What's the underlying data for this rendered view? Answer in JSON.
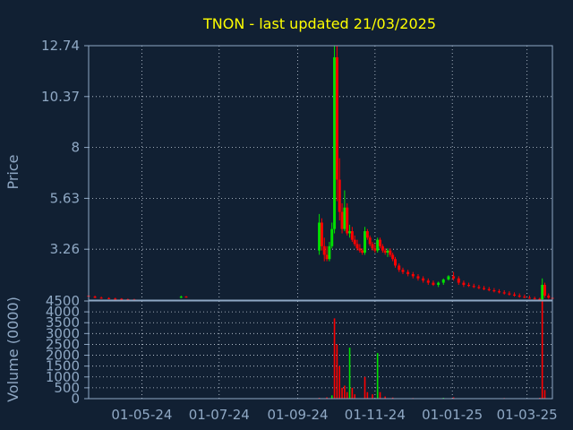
{
  "title": "TNON - last updated 21/03/2025",
  "colors": {
    "background": "#112033",
    "axis": "#8fa8c4",
    "grid": "#c8d2de",
    "text": "#8fa8c4",
    "title": "#ffff00",
    "up": "#00e000",
    "down": "#ff0000"
  },
  "chart_data": [
    {
      "type": "candlestick",
      "title": "TNON - last updated 21/03/2025",
      "ylabel": "Price",
      "ylim": [
        0.89,
        12.74
      ],
      "y_ticks": [
        "12.74",
        "10.37",
        "8",
        "5.63",
        "3.26"
      ],
      "x_range": [
        "2024-03-20",
        "2025-03-21"
      ],
      "x_ticks": [
        "01-05-24",
        "01-07-24",
        "01-09-24",
        "01-11-24",
        "01-01-25",
        "01-03-25"
      ],
      "grid": true,
      "series": [
        {
          "values": [
            [
              "2024-03-20",
              1.1,
              1.2,
              1.0,
              1.05
            ],
            [
              "2024-03-25",
              1.05,
              1.1,
              0.98,
              1.0
            ],
            [
              "2024-03-30",
              1.0,
              1.05,
              0.95,
              0.98
            ],
            [
              "2024-04-05",
              0.98,
              1.02,
              0.93,
              0.96
            ],
            [
              "2024-04-10",
              0.96,
              1.0,
              0.92,
              0.95
            ],
            [
              "2024-04-15",
              0.95,
              0.98,
              0.91,
              0.93
            ],
            [
              "2024-04-20",
              0.93,
              0.96,
              0.9,
              0.92
            ],
            [
              "2024-04-25",
              0.92,
              0.95,
              0.9,
              0.91
            ],
            [
              "2024-06-01",
              1.0,
              1.1,
              0.98,
              1.05
            ],
            [
              "2024-06-05",
              1.05,
              1.08,
              1.0,
              1.02
            ],
            [
              "2024-09-18",
              3.2,
              4.9,
              3.0,
              4.5
            ],
            [
              "2024-09-20",
              4.5,
              4.7,
              3.2,
              3.4
            ],
            [
              "2024-09-22",
              3.4,
              3.8,
              2.7,
              3.0
            ],
            [
              "2024-09-24",
              3.0,
              3.4,
              2.7,
              2.8
            ],
            [
              "2024-09-26",
              2.8,
              3.6,
              2.7,
              3.4
            ],
            [
              "2024-09-28",
              3.4,
              4.5,
              3.3,
              4.2
            ],
            [
              "2024-09-30",
              4.2,
              12.74,
              4.0,
              12.2
            ],
            [
              "2024-10-02",
              12.2,
              12.74,
              5.5,
              6.5
            ],
            [
              "2024-10-04",
              6.5,
              7.5,
              4.6,
              5.0
            ],
            [
              "2024-10-06",
              5.0,
              5.4,
              4.0,
              4.2
            ],
            [
              "2024-10-08",
              4.2,
              6.0,
              4.1,
              5.2
            ],
            [
              "2024-10-10",
              5.2,
              5.4,
              3.9,
              4.0
            ],
            [
              "2024-10-12",
              4.0,
              4.4,
              3.8,
              4.1
            ],
            [
              "2024-10-14",
              4.1,
              4.3,
              3.6,
              3.7
            ],
            [
              "2024-10-16",
              3.7,
              3.9,
              3.4,
              3.5
            ],
            [
              "2024-10-18",
              3.5,
              3.7,
              3.2,
              3.3
            ],
            [
              "2024-10-20",
              3.3,
              3.5,
              3.1,
              3.2
            ],
            [
              "2024-10-22",
              3.2,
              3.3,
              3.0,
              3.1
            ],
            [
              "2024-10-24",
              3.1,
              4.3,
              3.0,
              4.1
            ],
            [
              "2024-10-26",
              4.1,
              4.2,
              3.7,
              3.8
            ],
            [
              "2024-10-28",
              3.8,
              3.9,
              3.4,
              3.5
            ],
            [
              "2024-10-30",
              3.5,
              3.6,
              3.2,
              3.3
            ],
            [
              "2024-11-01",
              3.3,
              3.5,
              3.1,
              3.2
            ],
            [
              "2024-11-03",
              3.2,
              3.8,
              3.1,
              3.7
            ],
            [
              "2024-11-05",
              3.7,
              3.8,
              3.3,
              3.4
            ],
            [
              "2024-11-07",
              3.4,
              3.5,
              3.1,
              3.2
            ],
            [
              "2024-11-09",
              3.2,
              3.3,
              3.0,
              3.1
            ],
            [
              "2024-11-11",
              3.1,
              3.3,
              2.9,
              3.2
            ],
            [
              "2024-11-13",
              3.2,
              3.3,
              2.9,
              3.0
            ],
            [
              "2024-11-15",
              3.0,
              3.1,
              2.7,
              2.8
            ],
            [
              "2024-11-17",
              2.8,
              2.9,
              2.4,
              2.5
            ],
            [
              "2024-11-20",
              2.5,
              2.6,
              2.2,
              2.3
            ],
            [
              "2024-11-23",
              2.3,
              2.4,
              2.1,
              2.2
            ],
            [
              "2024-11-27",
              2.2,
              2.3,
              2.0,
              2.1
            ],
            [
              "2024-12-01",
              2.1,
              2.2,
              1.9,
              2.0
            ],
            [
              "2024-12-05",
              2.0,
              2.1,
              1.8,
              1.9
            ],
            [
              "2024-12-09",
              1.9,
              2.0,
              1.7,
              1.8
            ],
            [
              "2024-12-13",
              1.8,
              1.9,
              1.6,
              1.7
            ],
            [
              "2024-12-17",
              1.7,
              1.8,
              1.55,
              1.6
            ],
            [
              "2024-12-21",
              1.6,
              1.75,
              1.5,
              1.7
            ],
            [
              "2024-12-25",
              1.7,
              1.9,
              1.6,
              1.85
            ],
            [
              "2024-12-29",
              1.85,
              2.05,
              1.8,
              2.0
            ],
            [
              "2025-01-02",
              2.0,
              2.2,
              1.8,
              1.9
            ],
            [
              "2025-01-06",
              1.9,
              2.0,
              1.6,
              1.7
            ],
            [
              "2025-01-10",
              1.7,
              1.8,
              1.5,
              1.6
            ],
            [
              "2025-01-14",
              1.6,
              1.7,
              1.5,
              1.55
            ],
            [
              "2025-01-18",
              1.55,
              1.65,
              1.45,
              1.5
            ],
            [
              "2025-01-22",
              1.5,
              1.6,
              1.4,
              1.45
            ],
            [
              "2025-01-26",
              1.45,
              1.55,
              1.35,
              1.4
            ],
            [
              "2025-01-30",
              1.4,
              1.5,
              1.3,
              1.35
            ],
            [
              "2025-02-03",
              1.35,
              1.45,
              1.25,
              1.3
            ],
            [
              "2025-02-07",
              1.3,
              1.4,
              1.2,
              1.25
            ],
            [
              "2025-02-11",
              1.25,
              1.35,
              1.15,
              1.2
            ],
            [
              "2025-02-15",
              1.2,
              1.3,
              1.1,
              1.15
            ],
            [
              "2025-02-19",
              1.15,
              1.25,
              1.05,
              1.1
            ],
            [
              "2025-02-23",
              1.1,
              1.2,
              1.0,
              1.05
            ],
            [
              "2025-02-27",
              1.05,
              1.15,
              0.98,
              1.0
            ],
            [
              "2025-03-03",
              1.0,
              1.1,
              0.95,
              0.98
            ],
            [
              "2025-03-07",
              0.98,
              1.05,
              0.92,
              0.95
            ],
            [
              "2025-03-11",
              0.95,
              1.0,
              0.9,
              0.93
            ],
            [
              "2025-03-13",
              0.93,
              1.9,
              0.9,
              1.6
            ],
            [
              "2025-03-15",
              1.6,
              1.7,
              1.0,
              1.1
            ],
            [
              "2025-03-18",
              1.1,
              1.2,
              0.95,
              1.0
            ],
            [
              "2025-03-21",
              1.0,
              1.1,
              0.9,
              0.95
            ]
          ]
        }
      ]
    },
    {
      "type": "bar",
      "ylabel": "Volume (0000)",
      "ylim": [
        0,
        4500
      ],
      "y_ticks": [
        "4500",
        "4000",
        "3500",
        "3000",
        "2500",
        "2000",
        "1500",
        "1000",
        "500",
        "0"
      ],
      "grid": true,
      "series": [
        {
          "values": [
            [
              "2024-09-18",
              40,
              "down"
            ],
            [
              "2024-09-24",
              60,
              "down"
            ],
            [
              "2024-09-28",
              150,
              "up"
            ],
            [
              "2024-09-30",
              3700,
              "down"
            ],
            [
              "2024-10-02",
              2500,
              "down"
            ],
            [
              "2024-10-04",
              1500,
              "down"
            ],
            [
              "2024-10-06",
              500,
              "down"
            ],
            [
              "2024-10-08",
              600,
              "down"
            ],
            [
              "2024-10-10",
              300,
              "down"
            ],
            [
              "2024-10-12",
              2350,
              "up"
            ],
            [
              "2024-10-14",
              500,
              "down"
            ],
            [
              "2024-10-16",
              200,
              "down"
            ],
            [
              "2024-10-24",
              1000,
              "down"
            ],
            [
              "2024-10-26",
              300,
              "down"
            ],
            [
              "2024-10-30",
              200,
              "down"
            ],
            [
              "2024-11-03",
              2100,
              "up"
            ],
            [
              "2024-11-05",
              300,
              "down"
            ],
            [
              "2024-11-09",
              100,
              "down"
            ],
            [
              "2024-11-15",
              50,
              "down"
            ],
            [
              "2024-12-01",
              30,
              "down"
            ],
            [
              "2024-12-25",
              40,
              "up"
            ],
            [
              "2025-01-02",
              60,
              "down"
            ],
            [
              "2025-02-11",
              30,
              "down"
            ],
            [
              "2025-03-11",
              40,
              "down"
            ],
            [
              "2025-03-13",
              4500,
              "down"
            ],
            [
              "2025-03-15",
              400,
              "down"
            ]
          ]
        }
      ]
    }
  ]
}
